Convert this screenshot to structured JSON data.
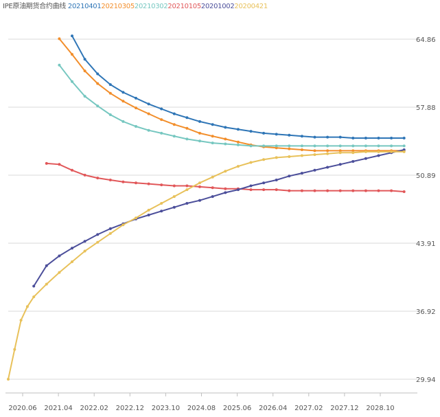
{
  "chart_data": {
    "type": "line",
    "title": "",
    "legend_title": "IPE原油期货合约曲线",
    "legend_placement": "top-left",
    "xlabel": "",
    "ylabel": "",
    "x_tick_labels": [
      "2020.06",
      "2021.04",
      "2022.02",
      "2022.12",
      "2023.10",
      "2024.08",
      "2025.06",
      "2026.04",
      "2027.02",
      "2027.12",
      "2028.10"
    ],
    "y_tick_labels": [
      "64.86",
      "57.88",
      "50.89",
      "43.91",
      "36.92",
      "29.94"
    ],
    "ylim": [
      29.94,
      64.86
    ],
    "grid": "horizontal",
    "colors": {
      "20210401": "#2e75b6",
      "20210305": "#f28e2b",
      "20210302": "#76c7c0",
      "20210105": "#e15759",
      "20201002": "#4b4e9a",
      "20200421": "#e8c15a"
    },
    "series": [
      {
        "name": "20210401",
        "color": "#2e75b6",
        "points": [
          [
            10,
            65.2
          ],
          [
            12,
            62.8
          ],
          [
            14,
            61.3
          ],
          [
            16,
            60.2
          ],
          [
            18,
            59.4
          ],
          [
            20,
            58.8
          ],
          [
            22,
            58.2
          ],
          [
            24,
            57.7
          ],
          [
            26,
            57.2
          ],
          [
            28,
            56.8
          ],
          [
            30,
            56.4
          ],
          [
            32,
            56.1
          ],
          [
            34,
            55.8
          ],
          [
            36,
            55.6
          ],
          [
            38,
            55.4
          ],
          [
            40,
            55.2
          ],
          [
            42,
            55.1
          ],
          [
            44,
            55.0
          ],
          [
            46,
            54.9
          ],
          [
            48,
            54.8
          ],
          [
            50,
            54.8
          ],
          [
            52,
            54.8
          ],
          [
            54,
            54.7
          ],
          [
            56,
            54.7
          ],
          [
            58,
            54.7
          ],
          [
            60,
            54.7
          ],
          [
            62,
            54.7
          ]
        ]
      },
      {
        "name": "20210305",
        "color": "#f28e2b",
        "points": [
          [
            8,
            64.9
          ],
          [
            10,
            63.3
          ],
          [
            12,
            61.6
          ],
          [
            14,
            60.3
          ],
          [
            16,
            59.3
          ],
          [
            18,
            58.5
          ],
          [
            20,
            57.8
          ],
          [
            22,
            57.2
          ],
          [
            24,
            56.6
          ],
          [
            26,
            56.1
          ],
          [
            28,
            55.7
          ],
          [
            30,
            55.2
          ],
          [
            32,
            54.9
          ],
          [
            34,
            54.6
          ],
          [
            36,
            54.3
          ],
          [
            38,
            54.0
          ],
          [
            40,
            53.8
          ],
          [
            42,
            53.7
          ],
          [
            44,
            53.6
          ],
          [
            46,
            53.5
          ],
          [
            48,
            53.4
          ],
          [
            50,
            53.4
          ],
          [
            52,
            53.4
          ],
          [
            54,
            53.4
          ],
          [
            56,
            53.4
          ],
          [
            58,
            53.4
          ],
          [
            60,
            53.4
          ],
          [
            62,
            53.4
          ]
        ]
      },
      {
        "name": "20210302",
        "color": "#76c7c0",
        "points": [
          [
            8,
            62.2
          ],
          [
            10,
            60.5
          ],
          [
            12,
            59.0
          ],
          [
            14,
            58.0
          ],
          [
            16,
            57.1
          ],
          [
            18,
            56.4
          ],
          [
            20,
            55.9
          ],
          [
            22,
            55.5
          ],
          [
            24,
            55.2
          ],
          [
            26,
            54.9
          ],
          [
            28,
            54.6
          ],
          [
            30,
            54.4
          ],
          [
            32,
            54.2
          ],
          [
            34,
            54.1
          ],
          [
            36,
            54.0
          ],
          [
            38,
            53.9
          ],
          [
            40,
            53.9
          ],
          [
            42,
            53.9
          ],
          [
            44,
            53.9
          ],
          [
            46,
            53.9
          ],
          [
            48,
            53.9
          ],
          [
            50,
            53.9
          ],
          [
            52,
            53.9
          ],
          [
            54,
            53.9
          ],
          [
            56,
            53.9
          ],
          [
            58,
            53.9
          ],
          [
            60,
            53.9
          ],
          [
            62,
            53.9
          ]
        ]
      },
      {
        "name": "20210105",
        "color": "#e15759",
        "points": [
          [
            6,
            52.1
          ],
          [
            8,
            52.0
          ],
          [
            10,
            51.4
          ],
          [
            12,
            50.9
          ],
          [
            14,
            50.6
          ],
          [
            16,
            50.4
          ],
          [
            18,
            50.2
          ],
          [
            20,
            50.1
          ],
          [
            22,
            50.0
          ],
          [
            24,
            49.9
          ],
          [
            26,
            49.8
          ],
          [
            28,
            49.8
          ],
          [
            30,
            49.7
          ],
          [
            32,
            49.6
          ],
          [
            34,
            49.5
          ],
          [
            36,
            49.5
          ],
          [
            38,
            49.4
          ],
          [
            40,
            49.4
          ],
          [
            42,
            49.4
          ],
          [
            44,
            49.3
          ],
          [
            46,
            49.3
          ],
          [
            48,
            49.3
          ],
          [
            50,
            49.3
          ],
          [
            52,
            49.3
          ],
          [
            54,
            49.3
          ],
          [
            56,
            49.3
          ],
          [
            58,
            49.3
          ],
          [
            60,
            49.3
          ],
          [
            62,
            49.2
          ]
        ]
      },
      {
        "name": "20201002",
        "color": "#4b4e9a",
        "points": [
          [
            4,
            39.5
          ],
          [
            6,
            41.6
          ],
          [
            8,
            42.6
          ],
          [
            10,
            43.4
          ],
          [
            12,
            44.1
          ],
          [
            14,
            44.8
          ],
          [
            16,
            45.4
          ],
          [
            18,
            45.9
          ],
          [
            20,
            46.4
          ],
          [
            22,
            46.8
          ],
          [
            24,
            47.2
          ],
          [
            26,
            47.6
          ],
          [
            28,
            48.0
          ],
          [
            30,
            48.3
          ],
          [
            32,
            48.7
          ],
          [
            34,
            49.1
          ],
          [
            36,
            49.4
          ],
          [
            38,
            49.8
          ],
          [
            40,
            50.1
          ],
          [
            42,
            50.4
          ],
          [
            44,
            50.8
          ],
          [
            46,
            51.1
          ],
          [
            48,
            51.4
          ],
          [
            50,
            51.7
          ],
          [
            52,
            52.0
          ],
          [
            54,
            52.3
          ],
          [
            56,
            52.6
          ],
          [
            58,
            52.9
          ],
          [
            60,
            53.2
          ],
          [
            62,
            53.5
          ]
        ]
      },
      {
        "name": "20200421",
        "color": "#e8c15a",
        "points": [
          [
            0,
            29.94
          ],
          [
            1,
            33.0
          ],
          [
            2,
            36.0
          ],
          [
            3,
            37.4
          ],
          [
            4,
            38.4
          ],
          [
            6,
            39.7
          ],
          [
            8,
            40.9
          ],
          [
            10,
            42.0
          ],
          [
            12,
            43.1
          ],
          [
            14,
            44.0
          ],
          [
            16,
            44.9
          ],
          [
            18,
            45.8
          ],
          [
            20,
            46.5
          ],
          [
            22,
            47.3
          ],
          [
            24,
            48.0
          ],
          [
            26,
            48.7
          ],
          [
            28,
            49.4
          ],
          [
            30,
            50.1
          ],
          [
            32,
            50.7
          ],
          [
            34,
            51.3
          ],
          [
            36,
            51.8
          ],
          [
            38,
            52.2
          ],
          [
            40,
            52.5
          ],
          [
            42,
            52.7
          ],
          [
            44,
            52.8
          ],
          [
            46,
            52.9
          ],
          [
            48,
            53.0
          ],
          [
            50,
            53.1
          ],
          [
            52,
            53.2
          ],
          [
            54,
            53.2
          ],
          [
            56,
            53.3
          ],
          [
            58,
            53.3
          ],
          [
            60,
            53.3
          ],
          [
            62,
            53.3
          ]
        ]
      }
    ]
  }
}
